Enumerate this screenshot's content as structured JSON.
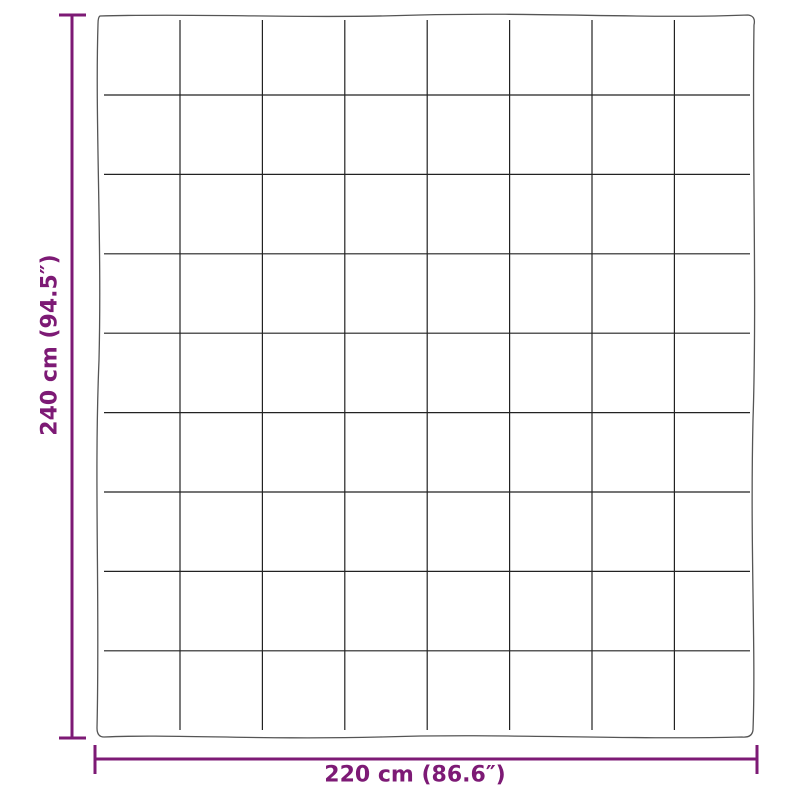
{
  "dimensions": {
    "width_label": "220 cm (86.6″)",
    "height_label": "240 cm (94.5″)"
  },
  "quilt": {
    "columns": 8,
    "rows": 9
  },
  "colors": {
    "dimension": "#7d1a75",
    "outline": "#222222"
  }
}
